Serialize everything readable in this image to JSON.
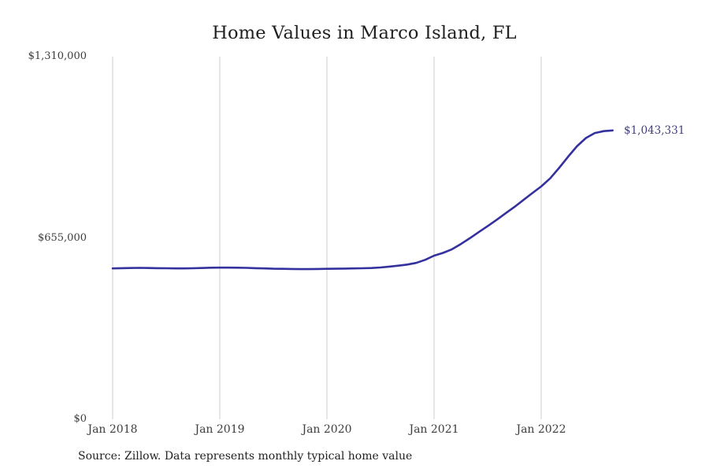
{
  "title": "Home Values in Marco Island, FL",
  "source_note": "Source: Zillow. Data represents monthly typical home value",
  "colors": {
    "line": "#34319e",
    "end_label": "#3f3e7d",
    "grid": "#cccccc",
    "title": "#1f1f1f",
    "axis_text": "#3d3d3d"
  },
  "chart_data": {
    "type": "line",
    "title": "Home Values in Marco Island, FL",
    "xlabel": "",
    "ylabel": "",
    "ylim": [
      0,
      1310000
    ],
    "y_tick_labels": [
      "$1,310,000",
      "$655,000",
      "$0"
    ],
    "y_tick_values": [
      1310000,
      655000,
      0
    ],
    "x_tick_labels": [
      "Jan 2018",
      "Jan 2019",
      "Jan 2020",
      "Jan 2021",
      "Jan 2022"
    ],
    "grid": "vertical-only",
    "legend": false,
    "frequency": "monthly",
    "end_value_label": "$1,043,331",
    "end_value": 1043331,
    "x": [
      "2018-01",
      "2018-02",
      "2018-03",
      "2018-04",
      "2018-05",
      "2018-06",
      "2018-07",
      "2018-08",
      "2018-09",
      "2018-10",
      "2018-11",
      "2018-12",
      "2019-01",
      "2019-02",
      "2019-03",
      "2019-04",
      "2019-05",
      "2019-06",
      "2019-07",
      "2019-08",
      "2019-09",
      "2019-10",
      "2019-11",
      "2019-12",
      "2020-01",
      "2020-02",
      "2020-03",
      "2020-04",
      "2020-05",
      "2020-06",
      "2020-07",
      "2020-08",
      "2020-09",
      "2020-10",
      "2020-11",
      "2020-12",
      "2021-01",
      "2021-02",
      "2021-03",
      "2021-04",
      "2021-05",
      "2021-06",
      "2021-07",
      "2021-08",
      "2021-09",
      "2021-10",
      "2021-11",
      "2021-12",
      "2022-01",
      "2022-02",
      "2022-03",
      "2022-04",
      "2022-05",
      "2022-06",
      "2022-07",
      "2022-08",
      "2022-09"
    ],
    "values": [
      545000,
      546000,
      546500,
      547000,
      546500,
      546000,
      545500,
      545000,
      545000,
      545500,
      546500,
      547500,
      548000,
      548000,
      547500,
      547000,
      546000,
      545000,
      544000,
      543500,
      543000,
      542500,
      542500,
      543000,
      543500,
      544000,
      544500,
      545000,
      545500,
      546500,
      548500,
      551500,
      555000,
      559000,
      565000,
      576000,
      591000,
      601000,
      614000,
      633000,
      654000,
      676000,
      698000,
      720000,
      744000,
      767000,
      792000,
      817000,
      841000,
      870000,
      908000,
      948000,
      986000,
      1016000,
      1034000,
      1041000,
      1043331
    ]
  }
}
